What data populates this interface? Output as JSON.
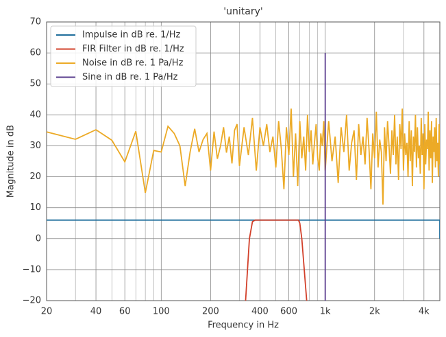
{
  "chart_data": {
    "type": "line",
    "title": "'unitary'",
    "x_label": "Frequency in Hz",
    "y_label": "Magnitude in dB",
    "xscale": "log",
    "xlim": [
      20,
      5000
    ],
    "ylim": [
      -20,
      70
    ],
    "xticks": [
      20,
      40,
      60,
      100,
      200,
      400,
      600,
      {
        "value": 1000,
        "label": "1k"
      },
      {
        "value": 2000,
        "label": "2k"
      },
      {
        "value": 4000,
        "label": "4k"
      }
    ],
    "xminorticks": [
      30,
      50,
      70,
      80,
      90,
      300,
      500,
      700,
      800,
      900,
      3000,
      5000
    ],
    "yticks": [
      {
        "value": -20,
        "label": "−20"
      },
      {
        "value": -10,
        "label": "−10"
      },
      0,
      10,
      20,
      30,
      40,
      50,
      60,
      70
    ],
    "grid": true,
    "legend": "upper left",
    "series": [
      {
        "name": "Impulse in dB re. 1/Hz",
        "color": "#1f6e9c",
        "x": [
          20,
          5000,
          5000
        ],
        "values": [
          6,
          6,
          0
        ]
      },
      {
        "name": "FIR Filter in dB re. 1/Hz",
        "color": "#d2402a",
        "x": [
          327,
          345,
          360,
          374,
          687,
          700,
          720,
          771
        ],
        "values": [
          -20,
          0,
          5.5,
          6,
          6,
          5,
          0,
          -20
        ]
      },
      {
        "name": "Noise in dB re. 1 Pa/Hz",
        "color": "#ecaa26",
        "x": [
          20,
          30,
          40,
          50,
          60,
          70,
          80,
          90,
          100,
          110,
          120,
          130,
          140,
          150,
          160,
          170,
          180,
          190,
          200,
          210,
          220,
          230,
          240,
          250,
          260,
          270,
          280,
          290,
          300,
          320,
          340,
          360,
          380,
          400,
          420,
          440,
          460,
          480,
          500,
          520,
          540,
          560,
          580,
          600,
          620,
          640,
          660,
          680,
          700,
          720,
          740,
          760,
          780,
          800,
          820,
          840,
          860,
          880,
          900,
          920,
          940,
          960,
          980,
          1000,
          1050,
          1100,
          1150,
          1200,
          1250,
          1300,
          1350,
          1400,
          1450,
          1500,
          1550,
          1600,
          1650,
          1700,
          1750,
          1800,
          1850,
          1900,
          1950,
          2000,
          2050,
          2100,
          2150,
          2200,
          2250,
          2300,
          2350,
          2400,
          2450,
          2500,
          2550,
          2600,
          2650,
          2700,
          2750,
          2800,
          2850,
          2900,
          2950,
          3000,
          3050,
          3100,
          3150,
          3200,
          3250,
          3300,
          3350,
          3400,
          3450,
          3500,
          3550,
          3600,
          3650,
          3700,
          3750,
          3800,
          3850,
          3900,
          3950,
          4000,
          4050,
          4100,
          4150,
          4200,
          4250,
          4300,
          4350,
          4400,
          4450,
          4500,
          4550,
          4600,
          4650,
          4700,
          4750,
          4800,
          4850,
          4900,
          4950,
          5000
        ],
        "values": [
          34.5,
          32.1,
          35.2,
          31.8,
          24.8,
          34.7,
          14.8,
          28.5,
          28.0,
          36.3,
          34.0,
          30.0,
          17.0,
          28.0,
          35.5,
          28.0,
          32.0,
          34.0,
          22.0,
          34.6,
          25.8,
          30.0,
          36.0,
          27.8,
          33.0,
          24.3,
          35.0,
          37.0,
          23.5,
          36,
          27,
          39,
          22,
          36,
          30,
          37,
          28,
          33,
          23,
          38,
          29,
          16,
          36,
          27,
          42,
          20,
          34,
          17,
          38,
          26,
          33,
          22,
          40,
          28,
          35,
          24,
          31,
          37,
          26,
          22,
          34,
          30,
          38,
          22,
          38,
          25,
          33,
          18,
          36,
          28,
          40,
          22,
          31,
          35,
          19,
          37,
          27,
          33,
          24,
          39,
          29,
          16,
          34,
          26,
          41,
          23,
          32,
          28,
          11,
          36,
          25,
          38,
          30,
          21,
          35,
          27,
          40,
          24,
          33,
          19,
          37,
          29,
          42,
          22,
          34,
          27,
          31,
          20,
          38,
          25,
          35,
          17,
          33,
          28,
          40,
          23,
          36,
          26,
          30,
          21,
          39,
          27,
          34,
          16,
          37,
          24,
          32,
          29,
          41,
          22,
          35,
          26,
          38,
          18,
          33,
          28,
          36,
          23,
          39,
          25,
          31,
          20,
          37,
          24
        ]
      },
      {
        "name": "Sine in dB re. 1 Pa/Hz",
        "color": "#5a3d8e",
        "x": [
          1000,
          1000
        ],
        "values": [
          -20,
          60
        ]
      }
    ]
  }
}
